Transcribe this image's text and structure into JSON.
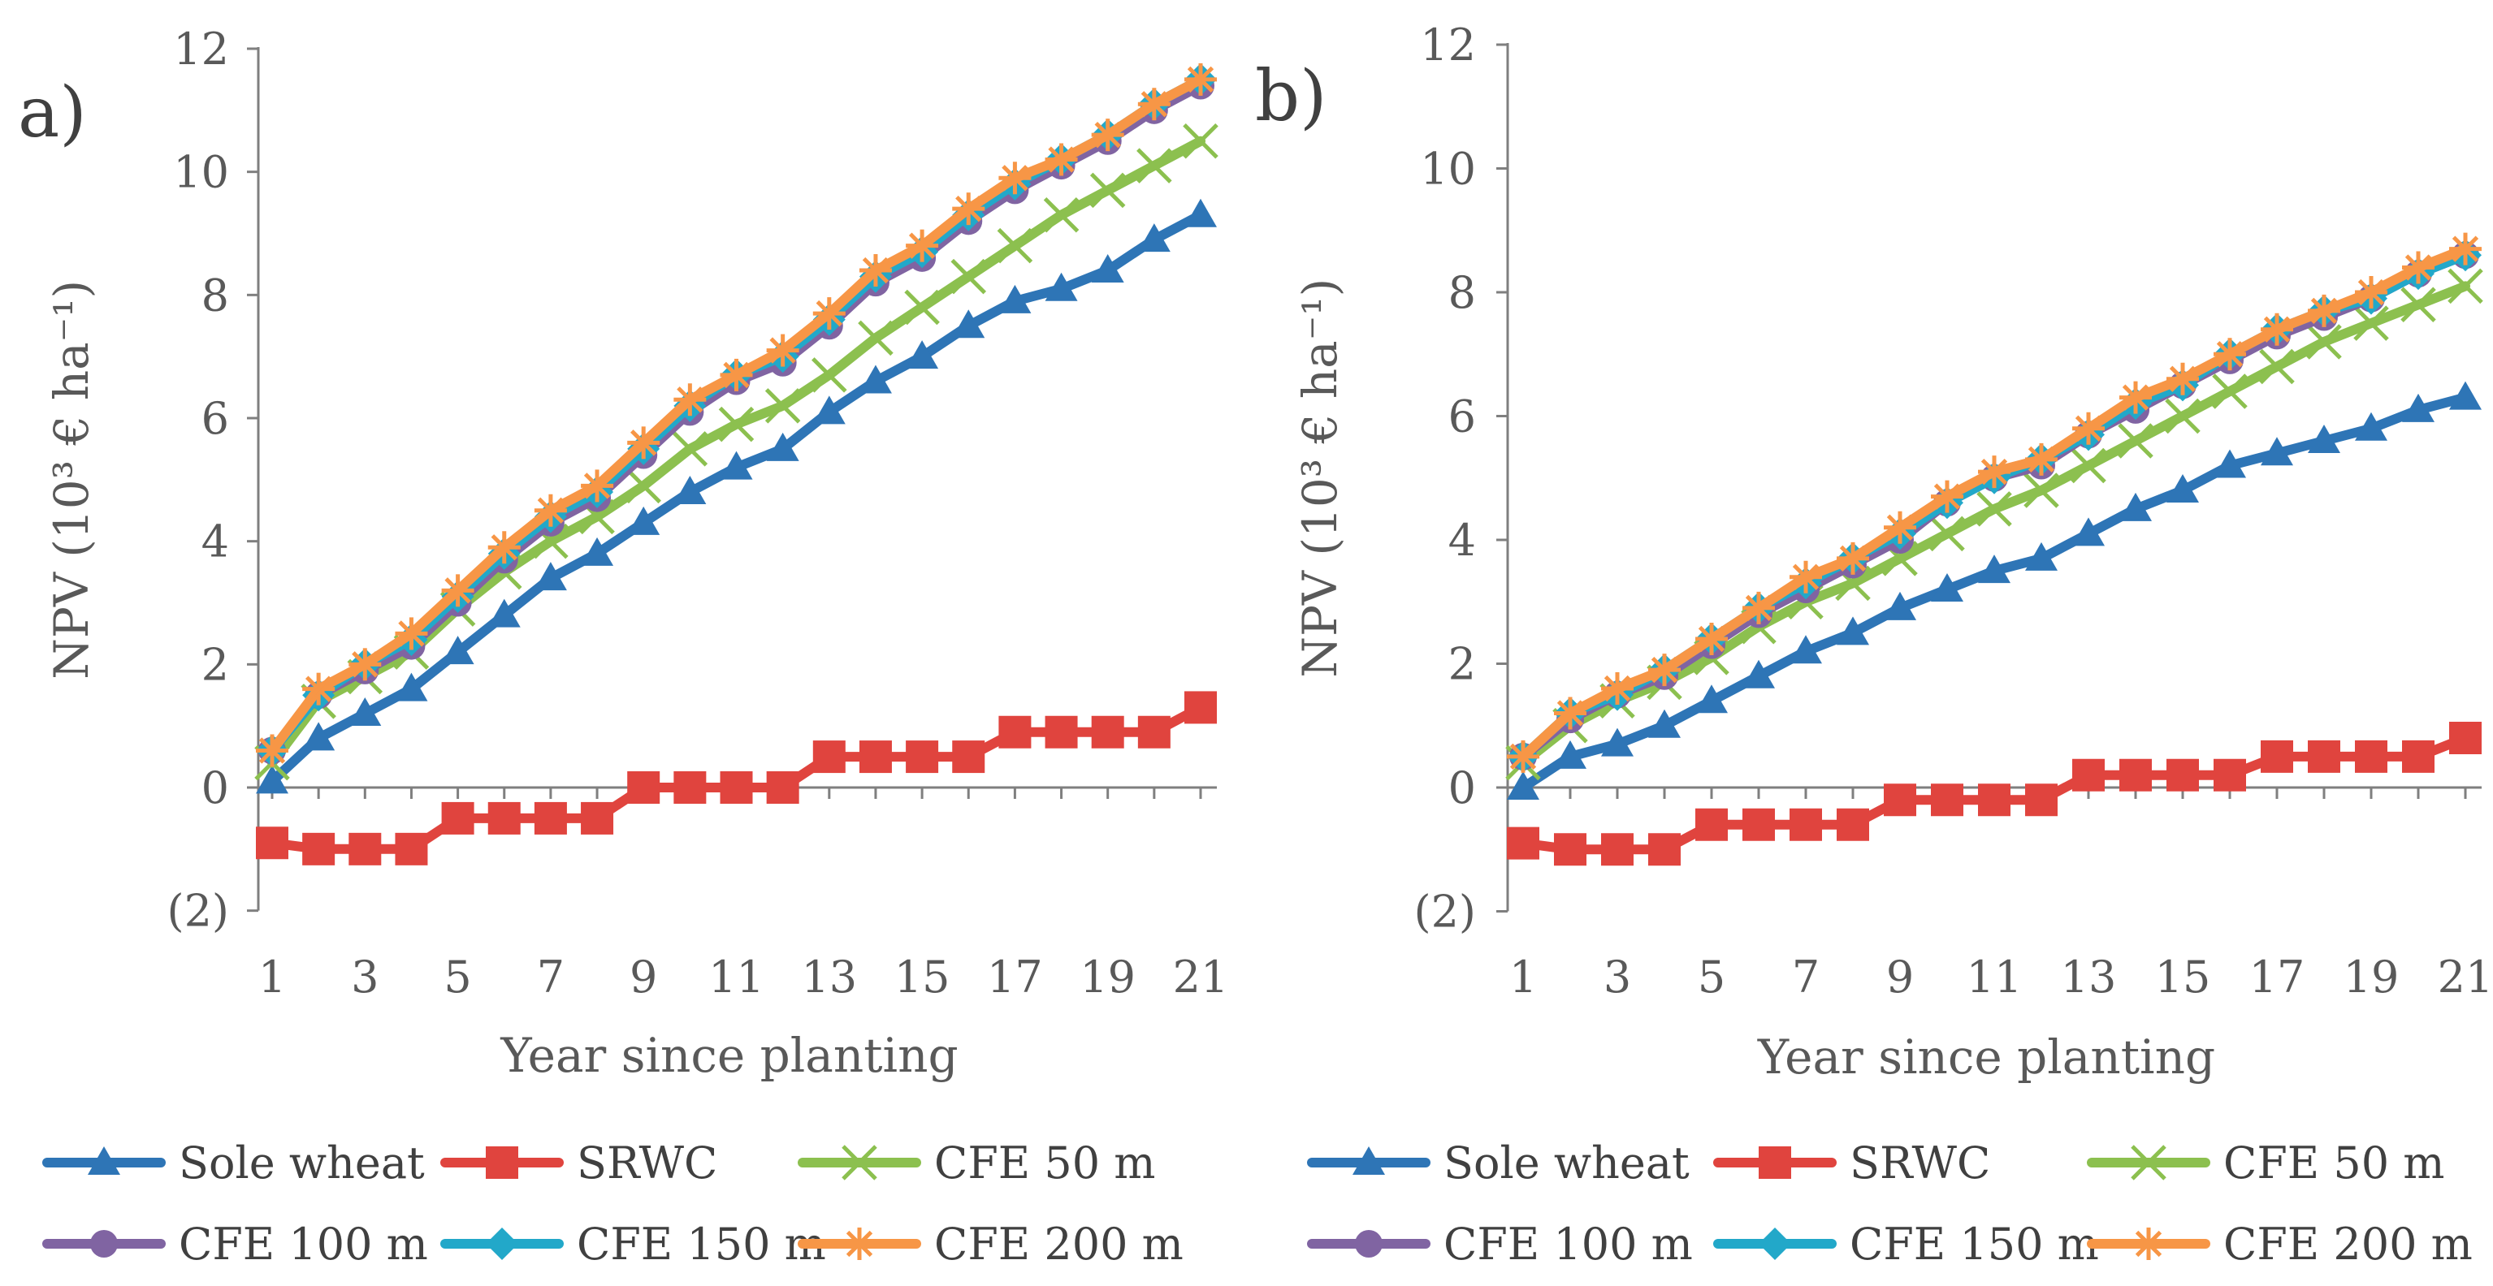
{
  "figure": {
    "legend": {
      "placement": "bottom, two rows under each panel",
      "entries": [
        "Sole wheat",
        "SRWC",
        "CFE 50 m",
        "CFE 100 m",
        "CFE 150 m",
        "CFE 200 m"
      ]
    }
  },
  "chart_data": [
    {
      "type": "line",
      "panel_label": "a)",
      "title": "",
      "xlabel": "Year since planting",
      "ylabel": "NPV (10³ € ha⁻¹)",
      "x": [
        1,
        2,
        3,
        4,
        5,
        6,
        7,
        8,
        9,
        10,
        11,
        12,
        13,
        14,
        15,
        16,
        17,
        18,
        19,
        20,
        21
      ],
      "x_tick_labels": [
        "1",
        "3",
        "5",
        "7",
        "9",
        "11",
        "13",
        "15",
        "17",
        "19",
        "21"
      ],
      "ylim": [
        -2,
        12
      ],
      "y_tick_labels": [
        "(2)",
        "0",
        "2",
        "4",
        "6",
        "8",
        "10",
        "12"
      ],
      "grid": false,
      "legend": "bottom",
      "series": [
        {
          "name": "Sole wheat",
          "color": "#2E75B6",
          "marker": "triangle",
          "values": [
            0.1,
            0.8,
            1.2,
            1.6,
            2.2,
            2.8,
            3.4,
            3.8,
            4.3,
            4.8,
            5.2,
            5.5,
            6.1,
            6.6,
            7.0,
            7.5,
            7.9,
            8.1,
            8.4,
            8.9,
            9.3
          ]
        },
        {
          "name": "SRWC",
          "color": "#E0443E",
          "marker": "square",
          "values": [
            -0.9,
            -1.0,
            -1.0,
            -1.0,
            -0.5,
            -0.5,
            -0.5,
            -0.5,
            0.0,
            0.0,
            0.0,
            0.0,
            0.5,
            0.5,
            0.5,
            0.5,
            0.9,
            0.9,
            0.9,
            0.9,
            1.3
          ]
        },
        {
          "name": "CFE 50 m",
          "color": "#8CC04F",
          "marker": "x",
          "values": [
            0.4,
            1.4,
            1.8,
            2.2,
            2.9,
            3.5,
            4.0,
            4.4,
            4.9,
            5.5,
            5.9,
            6.2,
            6.7,
            7.3,
            7.8,
            8.3,
            8.8,
            9.3,
            9.7,
            10.1,
            10.5
          ]
        },
        {
          "name": "CFE 100 m",
          "color": "#8064A2",
          "marker": "circle",
          "values": [
            0.6,
            1.5,
            1.9,
            2.3,
            3.0,
            3.7,
            4.3,
            4.7,
            5.4,
            6.1,
            6.6,
            6.9,
            7.5,
            8.2,
            8.6,
            9.2,
            9.7,
            10.1,
            10.5,
            11.0,
            11.4
          ]
        },
        {
          "name": "CFE 150 m",
          "color": "#22A8C9",
          "marker": "diamond",
          "values": [
            0.6,
            1.5,
            2.0,
            2.4,
            3.1,
            3.8,
            4.4,
            4.8,
            5.5,
            6.2,
            6.7,
            7.0,
            7.6,
            8.3,
            8.7,
            9.3,
            9.8,
            10.2,
            10.6,
            11.1,
            11.5
          ]
        },
        {
          "name": "CFE 200 m",
          "color": "#F79646",
          "marker": "asterisk",
          "values": [
            0.6,
            1.6,
            2.0,
            2.5,
            3.2,
            3.9,
            4.5,
            4.9,
            5.6,
            6.3,
            6.7,
            7.1,
            7.7,
            8.4,
            8.8,
            9.4,
            9.9,
            10.2,
            10.6,
            11.1,
            11.5
          ]
        }
      ]
    },
    {
      "type": "line",
      "panel_label": "b)",
      "title": "",
      "xlabel": "Year since planting",
      "ylabel": "NPV (10³ € ha⁻¹)",
      "x": [
        1,
        2,
        3,
        4,
        5,
        6,
        7,
        8,
        9,
        10,
        11,
        12,
        13,
        14,
        15,
        16,
        17,
        18,
        19,
        20,
        21
      ],
      "x_tick_labels": [
        "1",
        "3",
        "5",
        "7",
        "9",
        "11",
        "13",
        "15",
        "17",
        "19",
        "21"
      ],
      "ylim": [
        -2,
        12
      ],
      "y_tick_labels": [
        "(2)",
        "0",
        "2",
        "4",
        "6",
        "8",
        "10",
        "12"
      ],
      "grid": false,
      "legend": "bottom",
      "series": [
        {
          "name": "Sole wheat",
          "color": "#2E75B6",
          "marker": "triangle",
          "values": [
            0.0,
            0.5,
            0.7,
            1.0,
            1.4,
            1.8,
            2.2,
            2.5,
            2.9,
            3.2,
            3.5,
            3.7,
            4.1,
            4.5,
            4.8,
            5.2,
            5.4,
            5.6,
            5.8,
            6.1,
            6.3
          ]
        },
        {
          "name": "SRWC",
          "color": "#E0443E",
          "marker": "square",
          "values": [
            -0.9,
            -1.0,
            -1.0,
            -1.0,
            -0.6,
            -0.6,
            -0.6,
            -0.6,
            -0.2,
            -0.2,
            -0.2,
            -0.2,
            0.2,
            0.2,
            0.2,
            0.2,
            0.5,
            0.5,
            0.5,
            0.5,
            0.8
          ]
        },
        {
          "name": "CFE 50 m",
          "color": "#8CC04F",
          "marker": "x",
          "values": [
            0.4,
            1.0,
            1.4,
            1.7,
            2.1,
            2.6,
            3.0,
            3.3,
            3.7,
            4.1,
            4.5,
            4.8,
            5.2,
            5.6,
            6.0,
            6.4,
            6.8,
            7.2,
            7.5,
            7.8,
            8.1
          ]
        },
        {
          "name": "CFE 100 m",
          "color": "#8064A2",
          "marker": "circle",
          "values": [
            0.5,
            1.1,
            1.5,
            1.8,
            2.3,
            2.8,
            3.2,
            3.6,
            4.0,
            4.6,
            5.0,
            5.2,
            5.7,
            6.1,
            6.5,
            6.9,
            7.3,
            7.6,
            7.9,
            8.3,
            8.6
          ]
        },
        {
          "name": "CFE 150 m",
          "color": "#22A8C9",
          "marker": "diamond",
          "values": [
            0.5,
            1.2,
            1.5,
            1.9,
            2.4,
            2.9,
            3.3,
            3.7,
            4.1,
            4.6,
            5.0,
            5.3,
            5.7,
            6.2,
            6.5,
            7.0,
            7.4,
            7.7,
            7.9,
            8.3,
            8.6
          ]
        },
        {
          "name": "CFE 200 m",
          "color": "#F79646",
          "marker": "asterisk",
          "values": [
            0.5,
            1.2,
            1.6,
            1.9,
            2.4,
            2.9,
            3.4,
            3.7,
            4.2,
            4.7,
            5.1,
            5.3,
            5.8,
            6.3,
            6.6,
            7.0,
            7.4,
            7.7,
            8.0,
            8.4,
            8.7
          ]
        }
      ]
    }
  ]
}
